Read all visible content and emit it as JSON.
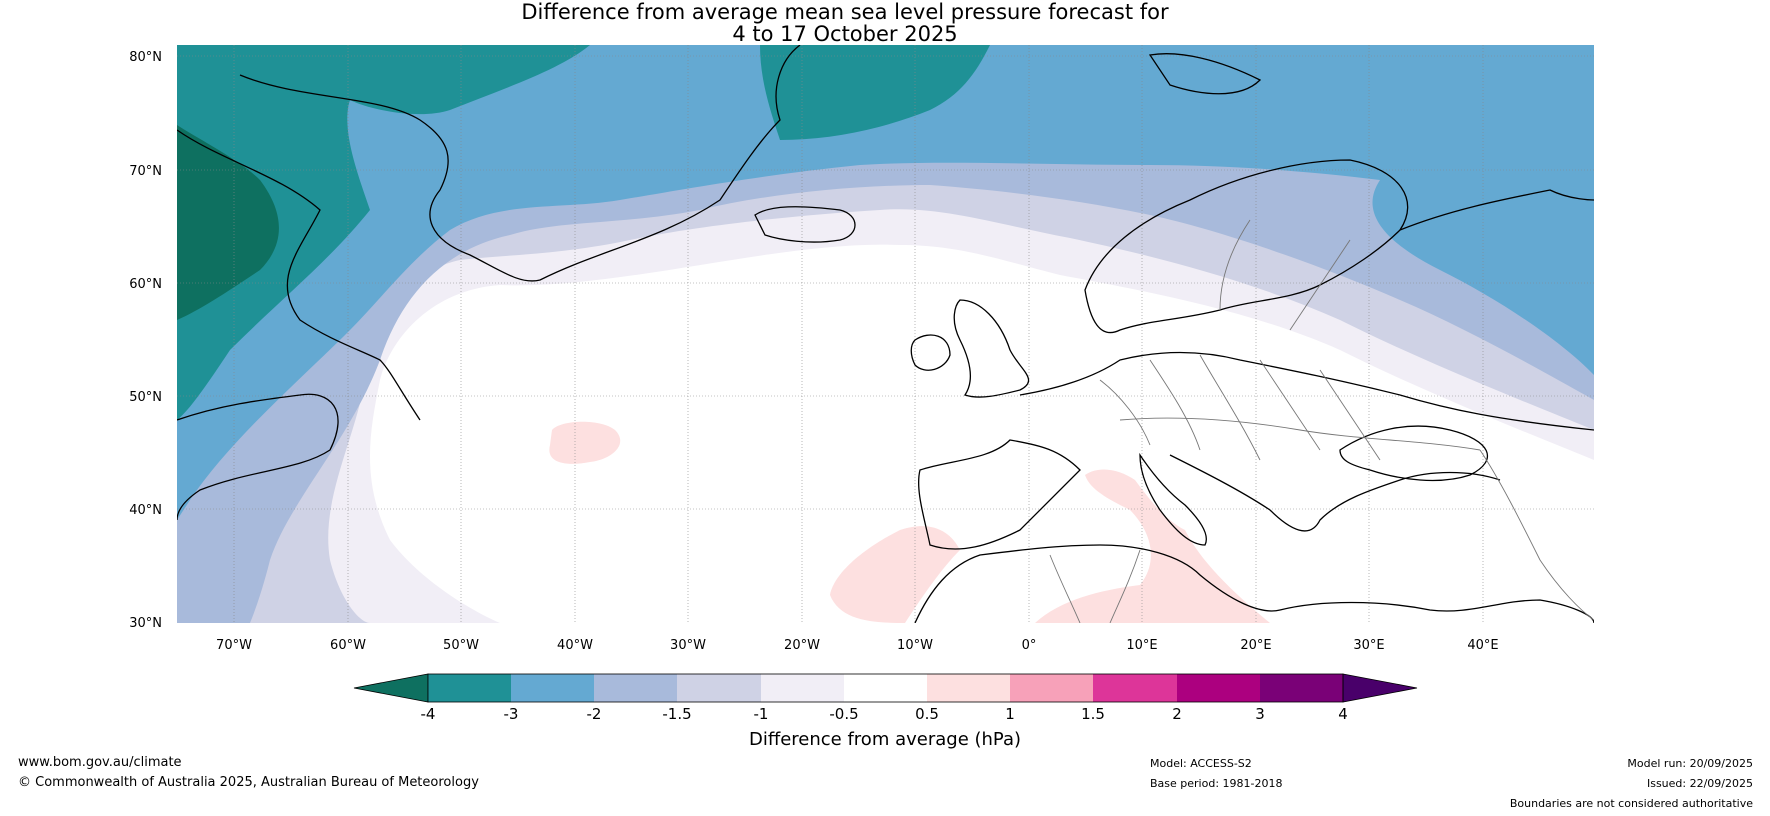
{
  "title_line1": "Difference from average mean sea level pressure forecast for",
  "title_line2": "4 to 17 October 2025",
  "lat_labels": [
    "80°N",
    "70°N",
    "60°N",
    "50°N",
    "40°N",
    "30°N"
  ],
  "lon_labels": [
    "70°W",
    "60°W",
    "50°W",
    "40°W",
    "30°W",
    "20°W",
    "10°W",
    "0°",
    "10°E",
    "20°E",
    "30°E",
    "40°E"
  ],
  "colorbar": {
    "label": "Difference from average (hPa)",
    "ticks": [
      "-4",
      "-3",
      "-2",
      "-1.5",
      "-1",
      "-0.5",
      "0.5",
      "1",
      "1.5",
      "2",
      "3",
      "4"
    ],
    "colors": [
      "#0e7060",
      "#1f9196",
      "#64a9d2",
      "#a8badb",
      "#cfd2e5",
      "#f1eef6",
      "#ffffff",
      "#fde0e0",
      "#f7a1b9",
      "#dd3599",
      "#ac007f",
      "#7a0177",
      "#49006a"
    ]
  },
  "footer": {
    "website": "www.bom.gov.au/climate",
    "copyright": "© Commonwealth of Australia 2025, Australian Bureau of Meteorology",
    "model": "Model: ACCESS-S2",
    "base_period": "Base period: 1981-2018",
    "model_run": "Model run: 20/09/2025",
    "issued": "Issued: 22/09/2025",
    "disclaimer": "Boundaries are not considered authoritative"
  }
}
